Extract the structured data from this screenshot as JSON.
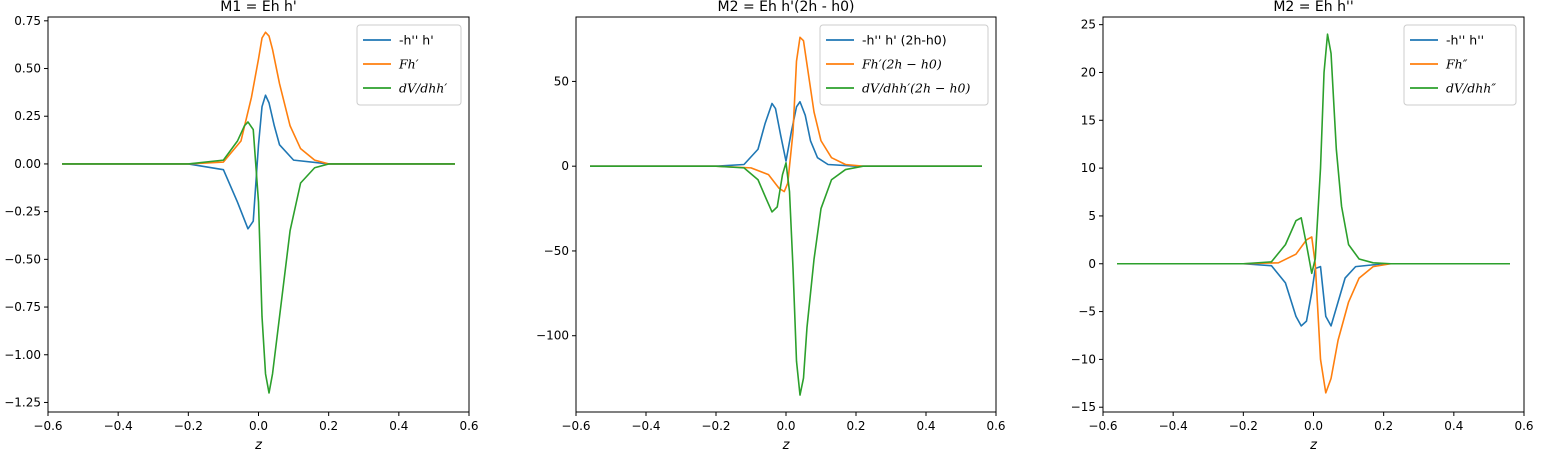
{
  "chart_data": [
    {
      "type": "line",
      "title": "M1 = Eh h'",
      "xlabel": "z",
      "ylabel": "",
      "xlim": [
        -0.6,
        0.6
      ],
      "ylim": [
        -1.3,
        0.77
      ],
      "xticks": [
        -0.6,
        -0.4,
        -0.2,
        0.0,
        0.2,
        0.4,
        0.6
      ],
      "xtick_labels": [
        "−0.6",
        "−0.4",
        "−0.2",
        "0.0",
        "0.2",
        "0.4",
        "0.6"
      ],
      "yticks": [
        -1.25,
        -1.0,
        -0.75,
        -0.5,
        -0.25,
        0.0,
        0.25,
        0.5,
        0.75
      ],
      "ytick_labels": [
        "−1.25",
        "−1.00",
        "−0.75",
        "−0.50",
        "−0.25",
        "0.00",
        "0.25",
        "0.50",
        "0.75"
      ],
      "legend_position": "top-right",
      "series": [
        {
          "name": "-h'' h'",
          "color": "#1f77b4",
          "x": [
            -0.56,
            -0.2,
            -0.1,
            -0.06,
            -0.03,
            -0.015,
            0.0,
            0.01,
            0.02,
            0.03,
            0.045,
            0.06,
            0.1,
            0.2,
            0.56
          ],
          "y": [
            0,
            0,
            -0.03,
            -0.2,
            -0.34,
            -0.3,
            0.1,
            0.3,
            0.36,
            0.32,
            0.2,
            0.1,
            0.02,
            0,
            0
          ]
        },
        {
          "name": "Fh′",
          "color": "#ff7f0e",
          "x": [
            -0.56,
            -0.2,
            -0.1,
            -0.05,
            -0.02,
            0.0,
            0.01,
            0.02,
            0.03,
            0.04,
            0.06,
            0.09,
            0.12,
            0.16,
            0.2,
            0.56
          ],
          "y": [
            0,
            0,
            0.01,
            0.12,
            0.35,
            0.55,
            0.66,
            0.69,
            0.67,
            0.6,
            0.42,
            0.2,
            0.08,
            0.02,
            0,
            0
          ]
        },
        {
          "name": "dV/dhh′",
          "color": "#2ca02c",
          "x": [
            -0.56,
            -0.2,
            -0.1,
            -0.06,
            -0.04,
            -0.03,
            -0.015,
            0.0,
            0.01,
            0.02,
            0.03,
            0.04,
            0.06,
            0.09,
            0.12,
            0.16,
            0.2,
            0.56
          ],
          "y": [
            0,
            0,
            0.02,
            0.12,
            0.2,
            0.22,
            0.18,
            -0.2,
            -0.8,
            -1.1,
            -1.2,
            -1.1,
            -0.8,
            -0.35,
            -0.1,
            -0.02,
            0,
            0
          ]
        }
      ]
    },
    {
      "type": "line",
      "title": "M2 = Eh h'(2h - h0)",
      "xlabel": "z",
      "ylabel": "",
      "xlim": [
        -0.6,
        0.6
      ],
      "ylim": [
        -145,
        88
      ],
      "xticks": [
        -0.6,
        -0.4,
        -0.2,
        0.0,
        0.2,
        0.4,
        0.6
      ],
      "xtick_labels": [
        "−0.6",
        "−0.4",
        "−0.2",
        "0.0",
        "0.2",
        "0.4",
        "0.6"
      ],
      "yticks": [
        -100,
        -50,
        0,
        50
      ],
      "ytick_labels": [
        "−100",
        "−50",
        "0",
        "50"
      ],
      "legend_position": "top-right",
      "series": [
        {
          "name": "-h'' h' (2h-h0)",
          "color": "#1f77b4",
          "x": [
            -0.56,
            -0.2,
            -0.12,
            -0.08,
            -0.06,
            -0.04,
            -0.03,
            -0.015,
            0.0,
            0.015,
            0.03,
            0.04,
            0.055,
            0.07,
            0.09,
            0.12,
            0.2,
            0.56
          ],
          "y": [
            0,
            0,
            1,
            10,
            25,
            37,
            34,
            18,
            3,
            20,
            35,
            38,
            30,
            15,
            5,
            1,
            0,
            0
          ]
        },
        {
          "name": "Fh′(2h − h0)",
          "color": "#ff7f0e",
          "x": [
            -0.56,
            -0.2,
            -0.1,
            -0.05,
            -0.02,
            -0.005,
            0.005,
            0.02,
            0.03,
            0.04,
            0.05,
            0.06,
            0.08,
            0.1,
            0.13,
            0.17,
            0.22,
            0.56
          ],
          "y": [
            0,
            0,
            -1,
            -5,
            -13,
            -15,
            -10,
            20,
            62,
            76,
            74,
            60,
            32,
            15,
            5,
            1,
            0,
            0
          ]
        },
        {
          "name": "dV/dhh′(2h − h0)",
          "color": "#2ca02c",
          "x": [
            -0.56,
            -0.2,
            -0.12,
            -0.08,
            -0.055,
            -0.04,
            -0.025,
            -0.01,
            0.0,
            0.01,
            0.02,
            0.03,
            0.04,
            0.05,
            0.06,
            0.08,
            0.1,
            0.13,
            0.17,
            0.22,
            0.56
          ],
          "y": [
            0,
            0,
            -1,
            -8,
            -20,
            -27,
            -24,
            -5,
            2,
            -15,
            -60,
            -115,
            -135,
            -125,
            -95,
            -55,
            -25,
            -8,
            -2,
            0,
            0
          ]
        }
      ]
    },
    {
      "type": "line",
      "title": "M2 = Eh h''",
      "xlabel": "z",
      "ylabel": "",
      "xlim": [
        -0.6,
        0.6
      ],
      "ylim": [
        -15.5,
        25.8
      ],
      "xticks": [
        -0.6,
        -0.4,
        -0.2,
        0.0,
        0.2,
        0.4,
        0.6
      ],
      "xtick_labels": [
        "−0.6",
        "−0.4",
        "−0.2",
        "0.0",
        "0.2",
        "0.4",
        "0.6"
      ],
      "yticks": [
        -15,
        -10,
        -5,
        0,
        5,
        10,
        15,
        20,
        25
      ],
      "ytick_labels": [
        "−15",
        "−10",
        "−5",
        "0",
        "5",
        "10",
        "15",
        "20",
        "25"
      ],
      "legend_position": "top-right",
      "series": [
        {
          "name": "-h'' h''",
          "color": "#1f77b4",
          "x": [
            -0.56,
            -0.2,
            -0.12,
            -0.08,
            -0.05,
            -0.035,
            -0.02,
            -0.005,
            0.005,
            0.02,
            0.035,
            0.05,
            0.07,
            0.09,
            0.12,
            0.2,
            0.56
          ],
          "y": [
            0,
            0,
            -0.2,
            -2,
            -5.5,
            -6.5,
            -6,
            -3,
            -0.5,
            -0.3,
            -5.5,
            -6.5,
            -4,
            -1.5,
            -0.3,
            0,
            0
          ]
        },
        {
          "name": "Fh″",
          "color": "#ff7f0e",
          "x": [
            -0.56,
            -0.2,
            -0.1,
            -0.05,
            -0.02,
            -0.005,
            0.005,
            0.02,
            0.035,
            0.05,
            0.07,
            0.1,
            0.13,
            0.17,
            0.22,
            0.56
          ],
          "y": [
            0,
            0,
            0.1,
            1,
            2.5,
            2.8,
            0,
            -10,
            -13.5,
            -12,
            -8,
            -4,
            -1.5,
            -0.3,
            0,
            0
          ]
        },
        {
          "name": "dV/dhh″",
          "color": "#2ca02c",
          "x": [
            -0.56,
            -0.2,
            -0.12,
            -0.08,
            -0.05,
            -0.035,
            -0.02,
            -0.005,
            0.005,
            0.02,
            0.03,
            0.04,
            0.05,
            0.065,
            0.08,
            0.1,
            0.13,
            0.17,
            0.22,
            0.56
          ],
          "y": [
            0,
            0,
            0.2,
            2,
            4.5,
            4.8,
            2,
            -1,
            0.5,
            10,
            20,
            24,
            22,
            12,
            6,
            2,
            0.5,
            0.1,
            0,
            0
          ]
        }
      ]
    }
  ]
}
